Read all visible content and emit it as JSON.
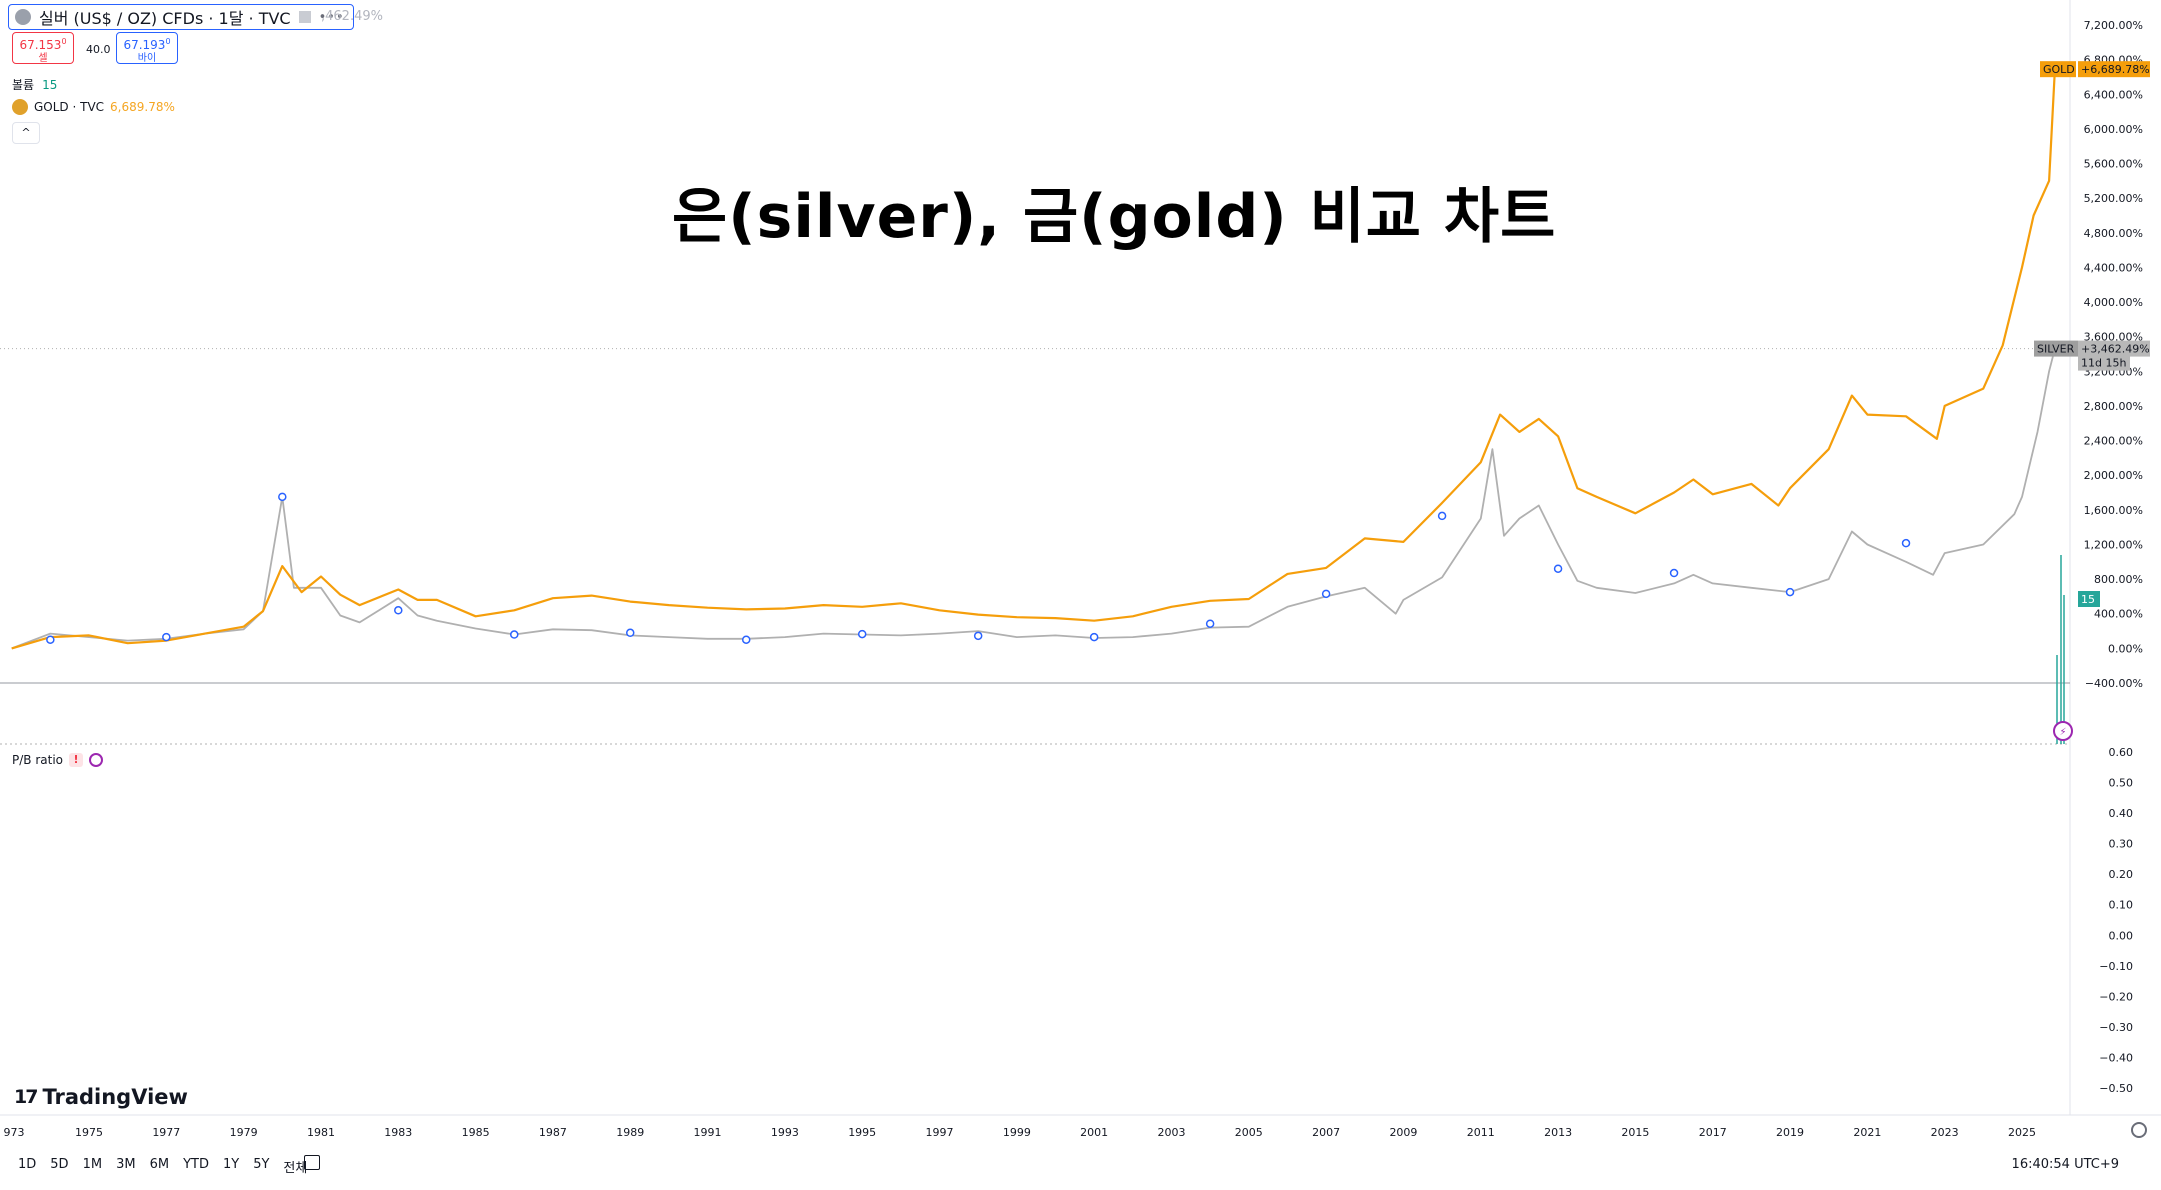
{
  "header": {
    "symbol": "실버 (US$ / OZ) CFDs · 1달 · TVC",
    "faded_pct": ",462.49%",
    "sell_price": "67.153",
    "sell_price_sup": "0",
    "sell_label": "셀",
    "spread": "40.0",
    "buy_price": "67.193",
    "buy_price_sup": "0",
    "buy_label": "바이",
    "volume_label": "볼륨",
    "volume_value": "15",
    "compare_symbol": "GOLD · TVC",
    "compare_pct": "6,689.78%",
    "collapse_icon": "^"
  },
  "title": "은(silver), 금(gold) 비교 차트",
  "indicator": {
    "label": "P/B ratio",
    "warn": "!"
  },
  "footer": {
    "brand": "TradingView",
    "timeframes": [
      "1D",
      "5D",
      "1M",
      "3M",
      "6M",
      "YTD",
      "1Y",
      "5Y",
      "전체"
    ],
    "clock": "16:40:54 UTC+9"
  },
  "colors": {
    "gold": "#f59e0b",
    "silver": "#b0b0b0",
    "volume": "#26a69a",
    "marker": "#2962ff"
  },
  "chart_data": {
    "type": "line",
    "x_ticks": [
      "973",
      "1975",
      "1977",
      "1979",
      "1981",
      "1983",
      "1985",
      "1987",
      "1989",
      "1991",
      "1993",
      "1995",
      "1997",
      "1999",
      "2001",
      "2003",
      "2005",
      "2007",
      "2009",
      "2011",
      "2013",
      "2015",
      "2017",
      "2019",
      "2021",
      "2023",
      "2025"
    ],
    "y_ticks": [
      "7,200.00%",
      "6,800.00%",
      "6,400.00%",
      "6,000.00%",
      "5,600.00%",
      "5,200.00%",
      "4,800.00%",
      "4,400.00%",
      "4,000.00%",
      "3,600.00%",
      "3,200.00%",
      "2,800.00%",
      "2,400.00%",
      "2,000.00%",
      "1,600.00%",
      "1,200.00%",
      "800.00%",
      "400.00%",
      "0.00%",
      "−400.00%"
    ],
    "ylim": [
      -400,
      7200
    ],
    "indicator_ticks": [
      "0.60",
      "0.50",
      "0.40",
      "0.30",
      "0.20",
      "0.10",
      "0.00",
      "−0.10",
      "−0.20",
      "−0.30",
      "−0.40",
      "−0.50"
    ],
    "indicator_ylim": [
      -0.5,
      0.6
    ],
    "series": [
      {
        "name": "GOLD",
        "last_label": "+6,689.78%",
        "points": [
          [
            1973,
            0
          ],
          [
            1974,
            130
          ],
          [
            1975,
            150
          ],
          [
            1976,
            60
          ],
          [
            1977,
            90
          ],
          [
            1978,
            170
          ],
          [
            1979,
            250
          ],
          [
            1979.5,
            430
          ],
          [
            1980,
            950
          ],
          [
            1980.5,
            650
          ],
          [
            1981,
            830
          ],
          [
            1981.5,
            620
          ],
          [
            1982,
            500
          ],
          [
            1983,
            680
          ],
          [
            1983.5,
            560
          ],
          [
            1984,
            560
          ],
          [
            1985,
            370
          ],
          [
            1986,
            440
          ],
          [
            1987,
            580
          ],
          [
            1988,
            610
          ],
          [
            1989,
            540
          ],
          [
            1990,
            500
          ],
          [
            1991,
            470
          ],
          [
            1992,
            450
          ],
          [
            1993,
            460
          ],
          [
            1994,
            500
          ],
          [
            1995,
            480
          ],
          [
            1996,
            520
          ],
          [
            1997,
            440
          ],
          [
            1998,
            390
          ],
          [
            1999,
            360
          ],
          [
            2000,
            350
          ],
          [
            2001,
            320
          ],
          [
            2002,
            370
          ],
          [
            2003,
            480
          ],
          [
            2004,
            550
          ],
          [
            2005,
            570
          ],
          [
            2006,
            860
          ],
          [
            2007,
            930
          ],
          [
            2008,
            1270
          ],
          [
            2009,
            1230
          ],
          [
            2010,
            1680
          ],
          [
            2011,
            2150
          ],
          [
            2011.5,
            2700
          ],
          [
            2012,
            2500
          ],
          [
            2012.5,
            2650
          ],
          [
            2013,
            2450
          ],
          [
            2013.5,
            1850
          ],
          [
            2014,
            1750
          ],
          [
            2015,
            1560
          ],
          [
            2016,
            1800
          ],
          [
            2016.5,
            1950
          ],
          [
            2017,
            1780
          ],
          [
            2018,
            1900
          ],
          [
            2018.7,
            1650
          ],
          [
            2019,
            1850
          ],
          [
            2020,
            2300
          ],
          [
            2020.6,
            2920
          ],
          [
            2021,
            2700
          ],
          [
            2022,
            2680
          ],
          [
            2022.8,
            2420
          ],
          [
            2023,
            2800
          ],
          [
            2024,
            3000
          ],
          [
            2024.5,
            3500
          ],
          [
            2025,
            4400
          ],
          [
            2025.3,
            5000
          ],
          [
            2025.7,
            5400
          ],
          [
            2025.85,
            6689.78
          ]
        ]
      },
      {
        "name": "SILVER",
        "last_label": "+3,462.49%",
        "points": [
          [
            1973,
            0
          ],
          [
            1974,
            170
          ],
          [
            1975,
            130
          ],
          [
            1976,
            90
          ],
          [
            1977,
            110
          ],
          [
            1978,
            170
          ],
          [
            1979,
            220
          ],
          [
            1979.5,
            430
          ],
          [
            1980,
            1750
          ],
          [
            1980.3,
            700
          ],
          [
            1981,
            700
          ],
          [
            1981.5,
            380
          ],
          [
            1982,
            300
          ],
          [
            1983,
            580
          ],
          [
            1983.5,
            380
          ],
          [
            1984,
            320
          ],
          [
            1985,
            230
          ],
          [
            1986,
            160
          ],
          [
            1987,
            220
          ],
          [
            1988,
            210
          ],
          [
            1989,
            150
          ],
          [
            1990,
            130
          ],
          [
            1991,
            110
          ],
          [
            1992,
            110
          ],
          [
            1993,
            130
          ],
          [
            1994,
            170
          ],
          [
            1995,
            160
          ],
          [
            1996,
            150
          ],
          [
            1997,
            170
          ],
          [
            1998,
            200
          ],
          [
            1999,
            130
          ],
          [
            2000,
            150
          ],
          [
            2001,
            120
          ],
          [
            2002,
            130
          ],
          [
            2003,
            170
          ],
          [
            2004,
            240
          ],
          [
            2005,
            250
          ],
          [
            2006,
            480
          ],
          [
            2007,
            600
          ],
          [
            2008,
            700
          ],
          [
            2008.8,
            400
          ],
          [
            2009,
            560
          ],
          [
            2010,
            820
          ],
          [
            2011,
            1500
          ],
          [
            2011.3,
            2300
          ],
          [
            2011.6,
            1300
          ],
          [
            2012,
            1500
          ],
          [
            2012.5,
            1650
          ],
          [
            2013,
            1200
          ],
          [
            2013.5,
            780
          ],
          [
            2014,
            700
          ],
          [
            2015,
            640
          ],
          [
            2016,
            750
          ],
          [
            2016.5,
            850
          ],
          [
            2017,
            750
          ],
          [
            2018,
            700
          ],
          [
            2019,
            650
          ],
          [
            2020,
            800
          ],
          [
            2020.6,
            1350
          ],
          [
            2021,
            1200
          ],
          [
            2022,
            1000
          ],
          [
            2022.7,
            850
          ],
          [
            2023,
            1100
          ],
          [
            2024,
            1200
          ],
          [
            2024.8,
            1550
          ],
          [
            2025,
            1750
          ],
          [
            2025.4,
            2500
          ],
          [
            2025.7,
            3200
          ],
          [
            2025.85,
            3462.49
          ]
        ]
      }
    ],
    "markers": [
      [
        1974,
        100
      ],
      [
        1977,
        130
      ],
      [
        1980,
        1750
      ],
      [
        1983,
        440
      ],
      [
        1986,
        160
      ],
      [
        1989,
        180
      ],
      [
        1992,
        100
      ],
      [
        1995,
        165
      ],
      [
        1998,
        145
      ],
      [
        2001,
        130
      ],
      [
        2004,
        285
      ],
      [
        2007,
        630
      ],
      [
        2010,
        1530
      ],
      [
        2013,
        920
      ],
      [
        2016,
        870
      ],
      [
        2019,
        650
      ],
      [
        2022,
        1215
      ]
    ],
    "last_volume": "15",
    "countdown": "11d 15h"
  }
}
